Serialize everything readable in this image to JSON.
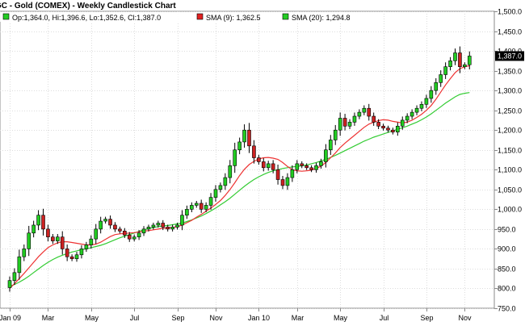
{
  "chart_data": {
    "type": "candlestick",
    "title": "GC - Gold (COMEX) - Weekly Candlestick Chart",
    "legend": [
      {
        "name": "Op:1,364.0, Hi:1,396.6, Lo:1,352.6, Cl:1,387.0",
        "color": "#22cc22"
      },
      {
        "name": "SMA (9): 1,362.5",
        "color": "#e02020"
      },
      {
        "name": "SMA (20): 1,294.8",
        "color": "#22cc22"
      }
    ],
    "ylim": [
      750,
      1500
    ],
    "y_ticks": [
      750,
      800,
      850,
      900,
      950,
      1000,
      1050,
      1100,
      1150,
      1200,
      1250,
      1300,
      1350,
      1400,
      1450,
      1500
    ],
    "y_tick_labels": [
      "750.0",
      "800.0",
      "850.0",
      "900.0",
      "950.0",
      "1,000.0",
      "1,050.0",
      "1,100.0",
      "1,150.0",
      "1,200.0",
      "1,250.0",
      "1,300.0",
      "1,350.0",
      "1,400.0",
      "1,450.0",
      "1,500.0"
    ],
    "x_tick_labels": [
      "Jan 09",
      "Mar",
      "May",
      "Jul",
      "Sep",
      "Nov",
      "Jan 10",
      "Mar",
      "May",
      "Jul",
      "Sep",
      "Nov"
    ],
    "x_tick_weeks": [
      0,
      8,
      17,
      26,
      35,
      43,
      52,
      60,
      69,
      78,
      87,
      95
    ],
    "last_value_label": "1,387.0",
    "grid": true,
    "bull_color": "#22cc22",
    "bear_color": "#cc2222",
    "sma9_color": "#ee3333",
    "sma20_color": "#33cc33",
    "closes": [
      820,
      840,
      880,
      900,
      940,
      960,
      985,
      950,
      930,
      920,
      930,
      900,
      880,
      875,
      885,
      900,
      910,
      925,
      950,
      970,
      975,
      960,
      950,
      945,
      935,
      925,
      930,
      940,
      950,
      955,
      960,
      965,
      955,
      950,
      955,
      960,
      985,
      1000,
      1010,
      1015,
      1000,
      1010,
      1030,
      1050,
      1060,
      1080,
      1110,
      1150,
      1170,
      1200,
      1160,
      1130,
      1120,
      1105,
      1115,
      1100,
      1075,
      1060,
      1080,
      1100,
      1115,
      1110,
      1105,
      1100,
      1110,
      1120,
      1150,
      1175,
      1200,
      1230,
      1210,
      1220,
      1235,
      1245,
      1255,
      1235,
      1220,
      1210,
      1205,
      1200,
      1195,
      1210,
      1225,
      1235,
      1245,
      1255,
      1265,
      1280,
      1300,
      1320,
      1340,
      1360,
      1375,
      1395,
      1360,
      1365,
      1387
    ],
    "sma9": [
      800,
      812,
      825,
      838,
      852,
      866,
      880,
      892,
      903,
      910,
      915,
      918,
      918,
      916,
      914,
      912,
      910,
      910,
      912,
      917,
      924,
      931,
      936,
      938,
      939,
      940,
      941,
      943,
      945,
      946,
      948,
      950,
      952,
      953,
      954,
      956,
      960,
      966,
      972,
      980,
      987,
      995,
      1003,
      1012,
      1022,
      1035,
      1050,
      1067,
      1085,
      1101,
      1113,
      1121,
      1127,
      1130,
      1131,
      1129,
      1126,
      1118,
      1108,
      1100,
      1097,
      1096,
      1097,
      1099,
      1103,
      1109,
      1118,
      1130,
      1142,
      1156,
      1167,
      1177,
      1187,
      1197,
      1207,
      1215,
      1220,
      1224,
      1226,
      1225,
      1222,
      1220,
      1218,
      1220,
      1225,
      1232,
      1240,
      1250,
      1262,
      1278,
      1296,
      1314,
      1330,
      1345,
      1355,
      1360,
      1362.5
    ],
    "sma20": [
      805,
      810,
      816,
      823,
      831,
      840,
      849,
      858,
      866,
      873,
      879,
      884,
      888,
      892,
      895,
      898,
      900,
      903,
      906,
      909,
      913,
      918,
      923,
      928,
      932,
      936,
      940,
      944,
      948,
      951,
      954,
      956,
      958,
      959,
      961,
      963,
      965,
      969,
      973,
      978,
      983,
      989,
      996,
      1003,
      1011,
      1019,
      1028,
      1038,
      1048,
      1058,
      1067,
      1075,
      1082,
      1088,
      1093,
      1097,
      1100,
      1103,
      1105,
      1107,
      1108,
      1110,
      1112,
      1115,
      1118,
      1122,
      1126,
      1131,
      1136,
      1142,
      1148,
      1154,
      1160,
      1166,
      1172,
      1177,
      1182,
      1186,
      1190,
      1194,
      1198,
      1202,
      1206,
      1210,
      1215,
      1220,
      1226,
      1233,
      1241,
      1250,
      1259,
      1268,
      1276,
      1284,
      1290,
      1293,
      1294.8
    ]
  }
}
